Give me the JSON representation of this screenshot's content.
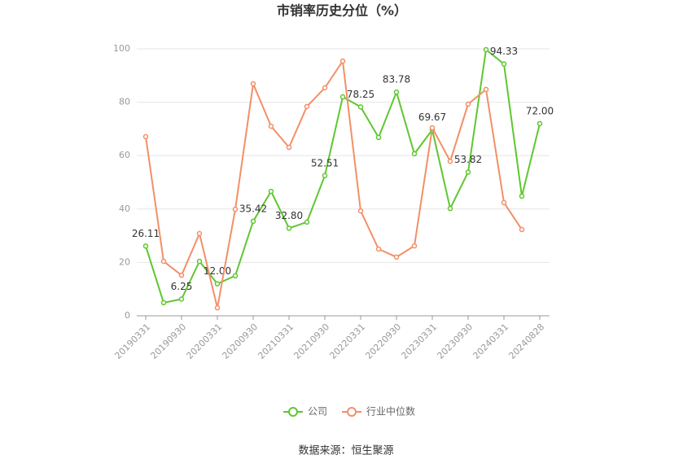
{
  "chart_data": {
    "type": "line",
    "title": "市销率历史分位（%）",
    "source": "数据来源：恒生聚源",
    "categories": [
      "20190331",
      null,
      "20190930",
      null,
      "20200331",
      null,
      "20200930",
      null,
      "20210331",
      null,
      "20210930",
      null,
      "20220331",
      null,
      "20220930",
      null,
      "20230331",
      null,
      "20230930",
      null,
      "20240331",
      null,
      "20240828"
    ],
    "series": [
      {
        "name": "公司",
        "color": "#5ec72f",
        "values": [
          26.11,
          4.9,
          6.25,
          20.4,
          12.0,
          15.0,
          35.42,
          46.6,
          32.8,
          35.1,
          52.51,
          82.0,
          78.25,
          66.8,
          83.78,
          60.7,
          69.67,
          40.2,
          53.82,
          99.7,
          94.33,
          44.8,
          72.0
        ],
        "value_labels": [
          "26.11",
          null,
          "6.25",
          null,
          "12.00",
          null,
          "35.42",
          null,
          "32.80",
          null,
          "52.51",
          null,
          "78.25",
          null,
          "83.78",
          null,
          "69.67",
          null,
          "53.82",
          null,
          "94.33",
          null,
          "72.00"
        ]
      },
      {
        "name": "行业中位数",
        "color": "#f38f67",
        "values": [
          67.1,
          20.4,
          15.2,
          30.8,
          3.0,
          39.9,
          86.9,
          71.0,
          63.1,
          78.4,
          85.4,
          95.4,
          39.3,
          25.0,
          22.0,
          26.2,
          70.4,
          57.9,
          79.3,
          84.8,
          42.4,
          32.3,
          null
        ]
      }
    ],
    "ylim": [
      0,
      100
    ],
    "yticks": [
      0,
      20,
      40,
      60,
      80,
      100
    ],
    "grid": true,
    "legend": "bottom"
  }
}
